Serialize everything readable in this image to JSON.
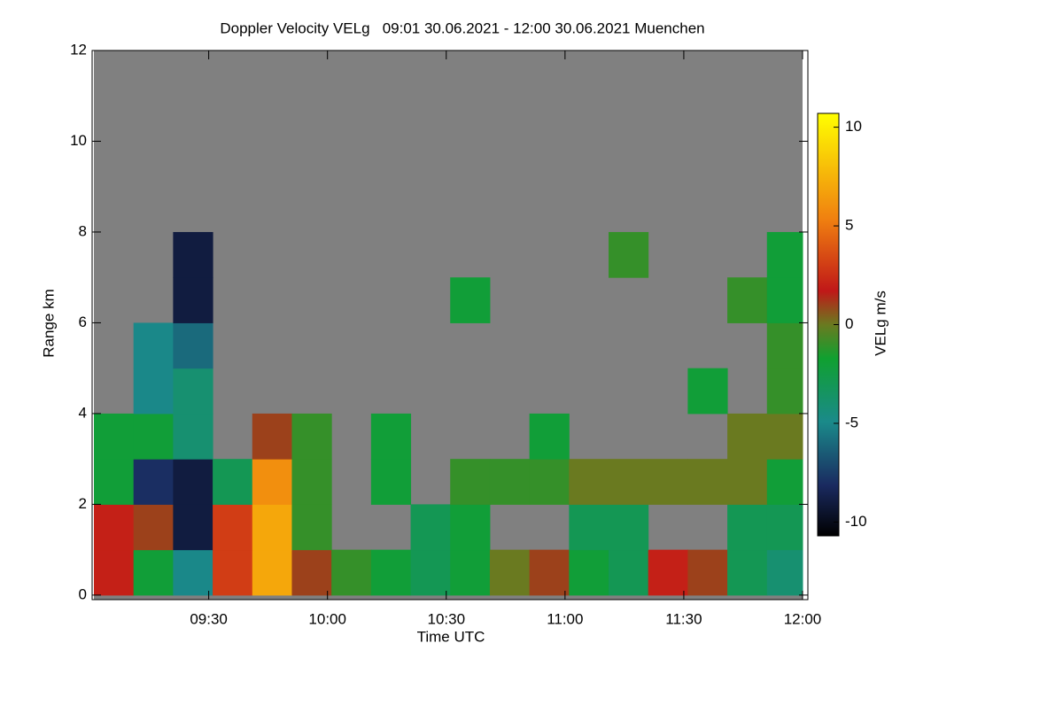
{
  "chart_data": {
    "type": "heatmap",
    "title": "Doppler Velocity VELg   09:01 30.06.2021 - 12:00 30.06.2021 Muenchen",
    "x_label": "Time UTC",
    "y_label": "Range km",
    "colorbar_label": "VELg m/s",
    "x_bins": [
      541,
      551,
      561,
      571,
      581,
      591,
      601,
      611,
      621,
      631,
      641,
      651,
      661,
      671,
      681,
      691,
      701,
      711,
      720
    ],
    "y_bins": [
      0,
      1,
      2,
      3,
      4,
      5,
      6,
      7,
      8,
      9,
      10,
      11,
      12
    ],
    "z": [
      [
        2,
        -2,
        -5,
        3,
        7,
        1,
        -1,
        -2,
        -3,
        -2,
        0,
        1,
        -2,
        -3,
        2,
        1,
        -3,
        -4
      ],
      [
        2,
        1,
        -9,
        3,
        7,
        -1,
        null,
        null,
        -3,
        -2,
        null,
        null,
        -3,
        -3,
        null,
        null,
        -3,
        -3
      ],
      [
        -2,
        -8,
        -9,
        -3,
        6,
        -1,
        null,
        -2,
        null,
        -1,
        -1,
        -1,
        0,
        0,
        0,
        0,
        0,
        -2
      ],
      [
        -2,
        -2,
        -4,
        null,
        1,
        -1,
        null,
        -2,
        null,
        null,
        null,
        -2,
        null,
        null,
        null,
        null,
        0,
        0
      ],
      [
        null,
        -5,
        -4,
        null,
        null,
        null,
        null,
        null,
        null,
        null,
        null,
        null,
        null,
        null,
        null,
        -2,
        null,
        -1
      ],
      [
        null,
        -5,
        -6,
        null,
        null,
        null,
        null,
        null,
        null,
        null,
        null,
        null,
        null,
        null,
        null,
        null,
        null,
        -1
      ],
      [
        null,
        null,
        -9,
        null,
        null,
        null,
        null,
        null,
        null,
        -2,
        null,
        null,
        null,
        null,
        null,
        null,
        -1,
        -2
      ],
      [
        null,
        null,
        -9,
        null,
        null,
        null,
        null,
        null,
        null,
        null,
        null,
        null,
        null,
        -1,
        null,
        null,
        null,
        -2
      ],
      [
        null,
        null,
        null,
        null,
        null,
        null,
        null,
        null,
        null,
        null,
        null,
        null,
        null,
        null,
        null,
        null,
        null,
        null
      ],
      [
        null,
        null,
        null,
        null,
        null,
        null,
        null,
        null,
        null,
        null,
        null,
        null,
        null,
        null,
        null,
        null,
        null,
        null
      ],
      [
        null,
        null,
        null,
        null,
        null,
        null,
        null,
        null,
        null,
        null,
        null,
        null,
        null,
        null,
        null,
        null,
        null,
        null
      ],
      [
        null,
        null,
        null,
        null,
        null,
        null,
        null,
        null,
        null,
        null,
        null,
        null,
        null,
        null,
        null,
        null,
        null,
        null
      ]
    ],
    "xlim": [
      541,
      720
    ],
    "xticks": [
      {
        "value": 570,
        "label": "09:30"
      },
      {
        "value": 600,
        "label": "10:00"
      },
      {
        "value": 630,
        "label": "10:30"
      },
      {
        "value": 660,
        "label": "11:00"
      },
      {
        "value": 690,
        "label": "11:30"
      },
      {
        "value": 720,
        "label": "12:00"
      }
    ],
    "ylim": [
      -0.1,
      12
    ],
    "yticks": [
      0,
      2,
      4,
      6,
      8,
      10,
      12
    ],
    "zlim": [
      -10.7,
      10.7
    ],
    "zticks": [
      -10,
      -5,
      0,
      5,
      10
    ],
    "missing_color": "#808080",
    "colorscale": [
      [
        0,
        "#000000"
      ],
      [
        0.12,
        "#1a2a60"
      ],
      [
        0.27,
        "#1a8a8a"
      ],
      [
        0.42,
        "#10a030"
      ],
      [
        0.5,
        "#6a7a20"
      ],
      [
        0.58,
        "#c01818"
      ],
      [
        0.75,
        "#f08010"
      ],
      [
        1,
        "#ffff00"
      ]
    ]
  }
}
